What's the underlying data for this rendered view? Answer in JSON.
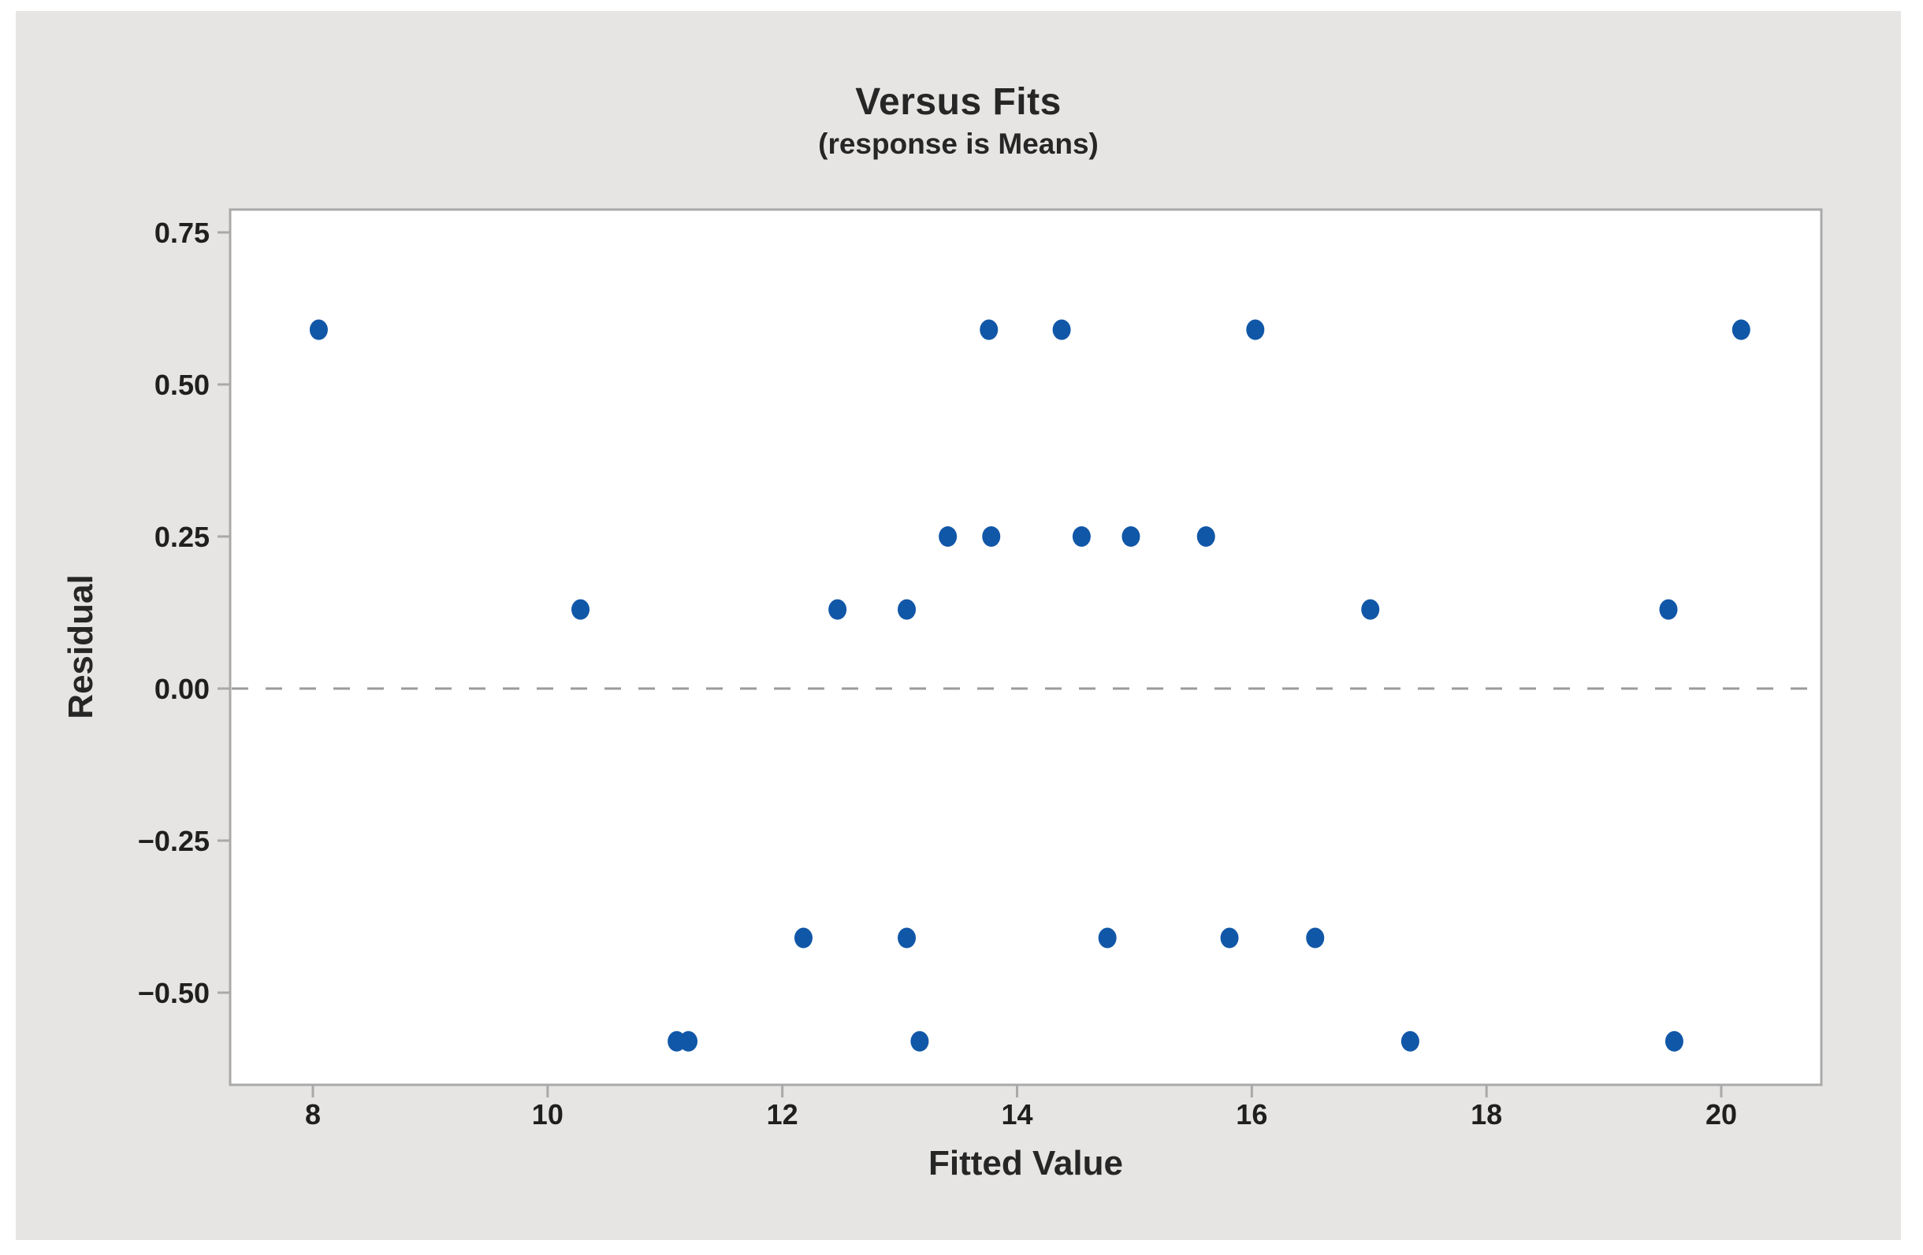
{
  "window": {
    "background": "#ffffff",
    "panel_background": "#e6e5e3"
  },
  "chart_data": {
    "type": "scatter",
    "title": "Versus Fits",
    "subtitle": "(response is Means)",
    "xlabel": "Fitted Value",
    "ylabel": "Residual",
    "xlim": [
      7.3,
      20.85
    ],
    "ylim": [
      -0.65,
      0.79
    ],
    "grid": false,
    "legend": "none",
    "zero_reference_line": 0.0,
    "x_ticks": [
      {
        "value": 8,
        "label": "8"
      },
      {
        "value": 10,
        "label": "10"
      },
      {
        "value": 12,
        "label": "12"
      },
      {
        "value": 14,
        "label": "14"
      },
      {
        "value": 16,
        "label": "16"
      },
      {
        "value": 18,
        "label": "18"
      },
      {
        "value": 20,
        "label": "20"
      }
    ],
    "y_ticks": [
      {
        "value": 0.75,
        "label": "0.75"
      },
      {
        "value": 0.5,
        "label": "0.50"
      },
      {
        "value": 0.25,
        "label": "0.25"
      },
      {
        "value": 0.0,
        "label": "0.00"
      },
      {
        "value": -0.25,
        "label": "−0.25"
      },
      {
        "value": -0.5,
        "label": "−0.50"
      }
    ],
    "points": [
      [
        8.05,
        0.59
      ],
      [
        13.76,
        0.59
      ],
      [
        14.38,
        0.59
      ],
      [
        16.03,
        0.59
      ],
      [
        20.17,
        0.59
      ],
      [
        13.41,
        0.25
      ],
      [
        13.78,
        0.25
      ],
      [
        14.55,
        0.25
      ],
      [
        14.97,
        0.25
      ],
      [
        15.61,
        0.25
      ],
      [
        10.28,
        0.13
      ],
      [
        12.47,
        0.13
      ],
      [
        13.06,
        0.13
      ],
      [
        17.01,
        0.13
      ],
      [
        19.55,
        0.13
      ],
      [
        12.18,
        -0.41
      ],
      [
        13.06,
        -0.41
      ],
      [
        14.77,
        -0.41
      ],
      [
        15.81,
        -0.41
      ],
      [
        16.54,
        -0.41
      ],
      [
        11.1,
        -0.58
      ],
      [
        11.2,
        -0.58
      ],
      [
        13.17,
        -0.58
      ],
      [
        17.35,
        -0.58
      ],
      [
        19.6,
        -0.58
      ]
    ],
    "colors": {
      "point": "#1157a8",
      "axis": "#a9a9a9",
      "zero_line": "#9b9b9b",
      "text": "#262626",
      "tick_text": "#1f1f1f",
      "plot_background": "#ffffff"
    }
  }
}
